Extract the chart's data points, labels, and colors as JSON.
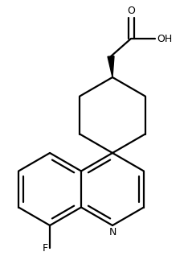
{
  "bg_color": "#ffffff",
  "line_color": "#000000",
  "line_width": 1.6,
  "font_size": 8.5,
  "figsize": [
    2.34,
    3.18
  ],
  "dpi": 100,
  "xlim": [
    0,
    234
  ],
  "ylim": [
    0,
    318
  ]
}
